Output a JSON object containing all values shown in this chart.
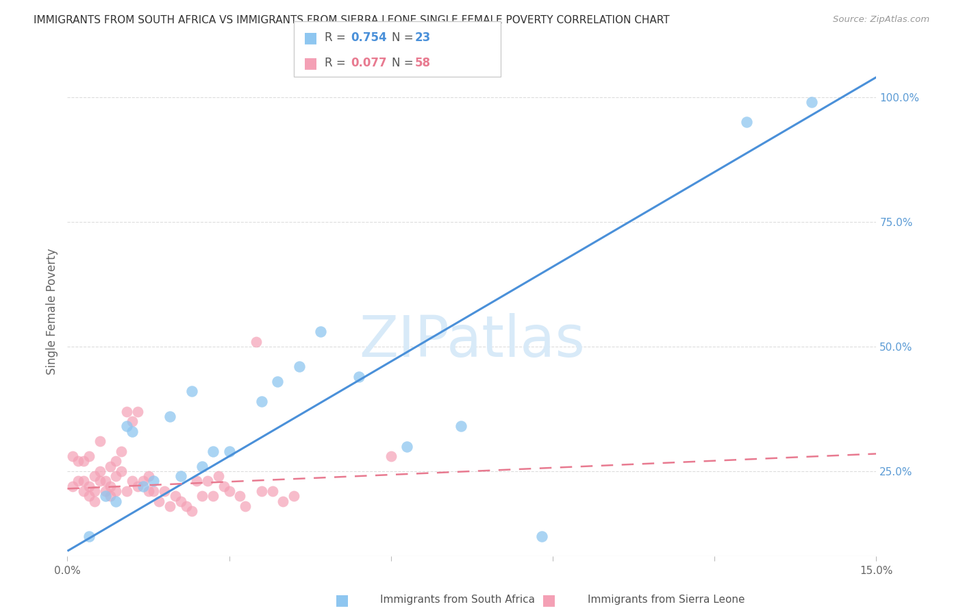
{
  "title": "IMMIGRANTS FROM SOUTH AFRICA VS IMMIGRANTS FROM SIERRA LEONE SINGLE FEMALE POVERTY CORRELATION CHART",
  "source": "Source: ZipAtlas.com",
  "ylabel": "Single Female Poverty",
  "r_south_africa": 0.754,
  "n_south_africa": 23,
  "r_sierra_leone": 0.077,
  "n_sierra_leone": 58,
  "xlim": [
    0.0,
    0.15
  ],
  "ylim": [
    0.08,
    1.06
  ],
  "xticks": [
    0.0,
    0.03,
    0.06,
    0.09,
    0.12,
    0.15
  ],
  "xticklabels": [
    "0.0%",
    "",
    "",
    "",
    "",
    "15.0%"
  ],
  "right_yticks": [
    0.25,
    0.5,
    0.75,
    1.0
  ],
  "right_yticklabels": [
    "25.0%",
    "50.0%",
    "75.0%",
    "100.0%"
  ],
  "color_south_africa": "#8ec6f0",
  "color_sierra_leone": "#f4a0b5",
  "color_trend_south_africa": "#4a90d9",
  "color_trend_sierra_leone": "#e87a90",
  "watermark_color": "#d8eaf8",
  "background_color": "#ffffff",
  "grid_color": "#dddddd",
  "south_africa_x": [
    0.004,
    0.007,
    0.009,
    0.011,
    0.012,
    0.014,
    0.016,
    0.019,
    0.021,
    0.023,
    0.025,
    0.027,
    0.03,
    0.036,
    0.039,
    0.043,
    0.047,
    0.054,
    0.063,
    0.073,
    0.088,
    0.126,
    0.138
  ],
  "south_africa_y": [
    0.12,
    0.2,
    0.19,
    0.34,
    0.33,
    0.22,
    0.23,
    0.36,
    0.24,
    0.41,
    0.26,
    0.29,
    0.29,
    0.39,
    0.43,
    0.46,
    0.53,
    0.44,
    0.3,
    0.34,
    0.12,
    0.95,
    0.99
  ],
  "sierra_leone_x": [
    0.001,
    0.001,
    0.002,
    0.002,
    0.003,
    0.003,
    0.003,
    0.004,
    0.004,
    0.004,
    0.005,
    0.005,
    0.005,
    0.006,
    0.006,
    0.006,
    0.007,
    0.007,
    0.008,
    0.008,
    0.008,
    0.009,
    0.009,
    0.009,
    0.01,
    0.01,
    0.011,
    0.011,
    0.012,
    0.012,
    0.013,
    0.013,
    0.014,
    0.015,
    0.015,
    0.016,
    0.017,
    0.018,
    0.019,
    0.02,
    0.021,
    0.022,
    0.023,
    0.024,
    0.025,
    0.026,
    0.027,
    0.028,
    0.029,
    0.03,
    0.032,
    0.033,
    0.035,
    0.036,
    0.038,
    0.04,
    0.042,
    0.06
  ],
  "sierra_leone_y": [
    0.22,
    0.28,
    0.23,
    0.27,
    0.21,
    0.23,
    0.27,
    0.2,
    0.22,
    0.28,
    0.19,
    0.21,
    0.24,
    0.23,
    0.25,
    0.31,
    0.21,
    0.23,
    0.2,
    0.22,
    0.26,
    0.21,
    0.24,
    0.27,
    0.25,
    0.29,
    0.21,
    0.37,
    0.23,
    0.35,
    0.22,
    0.37,
    0.23,
    0.21,
    0.24,
    0.21,
    0.19,
    0.21,
    0.18,
    0.2,
    0.19,
    0.18,
    0.17,
    0.23,
    0.2,
    0.23,
    0.2,
    0.24,
    0.22,
    0.21,
    0.2,
    0.18,
    0.51,
    0.21,
    0.21,
    0.19,
    0.2,
    0.28
  ],
  "trend_sa_x0": 0.0,
  "trend_sa_y0": 0.09,
  "trend_sa_x1": 0.15,
  "trend_sa_y1": 1.04,
  "trend_sl_x0": 0.0,
  "trend_sl_y0": 0.215,
  "trend_sl_x1": 0.15,
  "trend_sl_y1": 0.285
}
